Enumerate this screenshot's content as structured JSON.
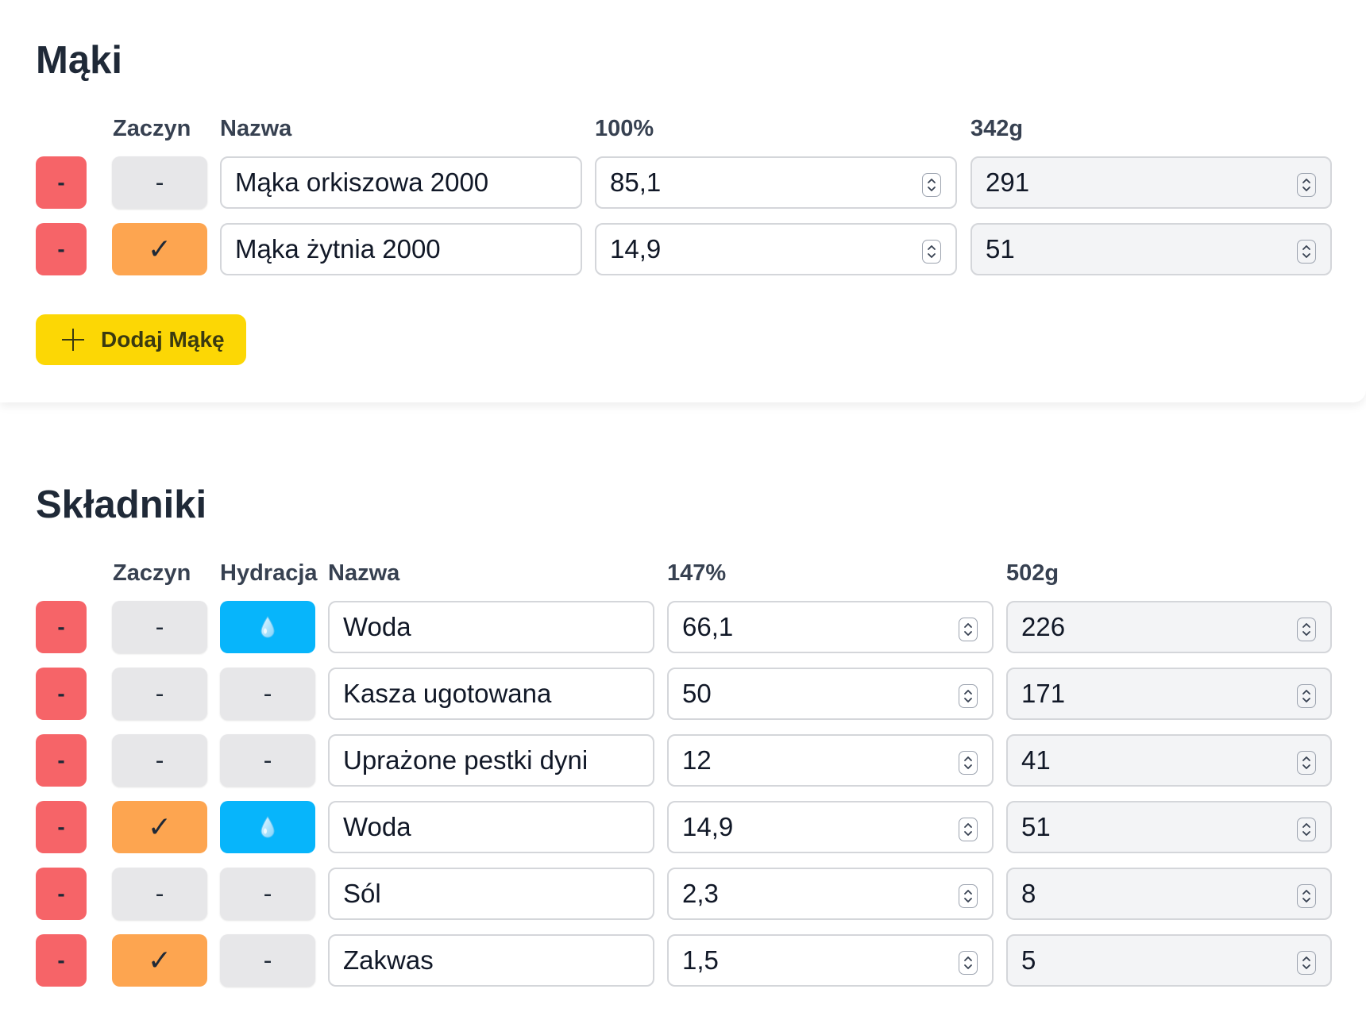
{
  "flours": {
    "title": "Mąki",
    "headers": {
      "starter": "Zaczyn",
      "name": "Nazwa",
      "percent": "100%",
      "grams": "342g"
    },
    "rows": [
      {
        "remove_label": "-",
        "starter": false,
        "starter_label": "-",
        "name": "Mąka orkiszowa 2000",
        "percent": "85,1",
        "grams": "291"
      },
      {
        "remove_label": "-",
        "starter": true,
        "starter_label": "✓",
        "name": "Mąka żytnia 2000",
        "percent": "14,9",
        "grams": "51"
      }
    ],
    "add_label": "Dodaj Mąkę"
  },
  "ingredients": {
    "title": "Składniki",
    "headers": {
      "starter": "Zaczyn",
      "hydration": "Hydracja",
      "name": "Nazwa",
      "percent": "147%",
      "grams": "502g"
    },
    "rows": [
      {
        "remove_label": "-",
        "starter": false,
        "starter_label": "-",
        "hydration": true,
        "hydration_label": "",
        "name": "Woda",
        "percent": "66,1",
        "grams": "226"
      },
      {
        "remove_label": "-",
        "starter": false,
        "starter_label": "-",
        "hydration": false,
        "hydration_label": "-",
        "name": "Kasza ugotowana",
        "percent": "50",
        "grams": "171"
      },
      {
        "remove_label": "-",
        "starter": false,
        "starter_label": "-",
        "hydration": false,
        "hydration_label": "-",
        "name": "Uprażone pestki dyni",
        "percent": "12",
        "grams": "41"
      },
      {
        "remove_label": "-",
        "starter": true,
        "starter_label": "✓",
        "hydration": true,
        "hydration_label": "",
        "name": "Woda",
        "percent": "14,9",
        "grams": "51"
      },
      {
        "remove_label": "-",
        "starter": false,
        "starter_label": "-",
        "hydration": false,
        "hydration_label": "-",
        "name": "Sól",
        "percent": "2,3",
        "grams": "8"
      },
      {
        "remove_label": "-",
        "starter": true,
        "starter_label": "✓",
        "hydration": false,
        "hydration_label": "-",
        "name": "Zakwas",
        "percent": "1,5",
        "grams": "5"
      }
    ]
  },
  "icons": {
    "remove": "minus-icon",
    "starter_on": "check-icon",
    "hydration_on": "water-drop-icon",
    "add": "plus-icon",
    "spinner": "spinner-arrows-icon"
  },
  "colors": {
    "remove": "#f66468",
    "toggle_off": "#e7e7e9",
    "starter_on": "#fda550",
    "hydration_on": "#07b5fb",
    "add_button": "#fcd705"
  }
}
